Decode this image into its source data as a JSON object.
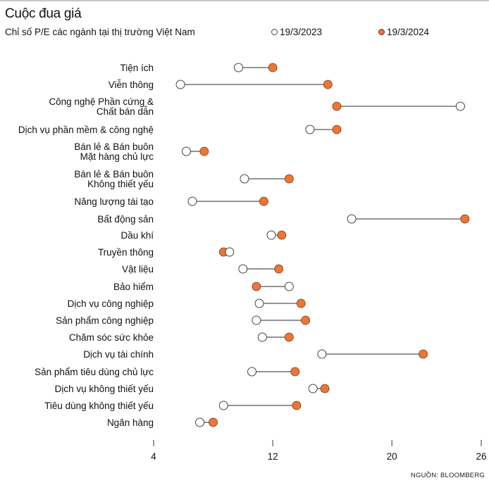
{
  "header": {
    "title": "Cuộc đua giá",
    "subtitle": "Chỉ số P/E các ngành tại thị trường Việt Nam"
  },
  "legend": [
    {
      "label": "19/3/2023",
      "color": "#ffffff",
      "stroke": "#444444"
    },
    {
      "label": "19/3/2024",
      "color": "#ee7533",
      "stroke": "#6b3a1d"
    }
  ],
  "source": "NGUỒN: BLOOMBERG",
  "chart_data": {
    "type": "dumbbell",
    "title": "Cuộc đua giá",
    "subtitle": "Chỉ số P/E các ngành tại thị trường Việt Nam",
    "xlabel": "",
    "ylabel": "",
    "xlim": [
      4,
      26
    ],
    "xticks": [
      4,
      12,
      20,
      26
    ],
    "grid": false,
    "legend_position": "top-right",
    "series_names": [
      "19/3/2023",
      "19/3/2024"
    ],
    "categories": [
      {
        "label": [
          "Tiện ích"
        ],
        "v2023": 9.7,
        "v2024": 12.0
      },
      {
        "label": [
          "Viễn thông"
        ],
        "v2023": 5.8,
        "v2024": 15.7
      },
      {
        "label": [
          "Công nghệ Phần cứng &",
          "Chất bán dẫn"
        ],
        "v2023": 24.6,
        "v2024": 16.3
      },
      {
        "label": [
          "Dịch vụ phần mềm & công nghệ"
        ],
        "v2023": 14.5,
        "v2024": 16.3
      },
      {
        "label": [
          "Bán lẻ & Bán buôn",
          "Mặt hàng chủ lực"
        ],
        "v2023": 6.2,
        "v2024": 7.4
      },
      {
        "label": [
          "Bán lẻ & Bán buôn",
          "Không thiết yếu"
        ],
        "v2023": 10.1,
        "v2024": 13.1
      },
      {
        "label": [
          "Năng lượng tái tạo"
        ],
        "v2023": 6.6,
        "v2024": 11.4
      },
      {
        "label": [
          "Bất động sản"
        ],
        "v2023": 17.3,
        "v2024": 24.9
      },
      {
        "label": [
          "Dầu khí"
        ],
        "v2023": 11.9,
        "v2024": 12.6
      },
      {
        "label": [
          "Truyền thông"
        ],
        "v2023": 9.1,
        "v2024": 8.7
      },
      {
        "label": [
          "Vật liệu"
        ],
        "v2023": 10.0,
        "v2024": 12.4
      },
      {
        "label": [
          "Bảo hiểm"
        ],
        "v2023": 13.1,
        "v2024": 10.9
      },
      {
        "label": [
          "Dịch vụ công nghiệp"
        ],
        "v2023": 11.1,
        "v2024": 13.9
      },
      {
        "label": [
          "Sản phẩm công nghiệp"
        ],
        "v2023": 10.9,
        "v2024": 14.2
      },
      {
        "label": [
          "Chăm sóc sức khỏe"
        ],
        "v2023": 11.3,
        "v2024": 13.1
      },
      {
        "label": [
          "Dịch vụ tài chính"
        ],
        "v2023": 15.3,
        "v2024": 22.1
      },
      {
        "label": [
          "Sản phẩm tiêu dùng chủ lực"
        ],
        "v2023": 10.6,
        "v2024": 13.5
      },
      {
        "label": [
          "Dịch vụ không thiết yếu"
        ],
        "v2023": 14.7,
        "v2024": 15.5
      },
      {
        "label": [
          "Tiêu dùng không thiết yếu"
        ],
        "v2023": 8.7,
        "v2024": 13.6
      },
      {
        "label": [
          "Ngân hàng"
        ],
        "v2023": 7.1,
        "v2024": 8.0
      }
    ]
  }
}
